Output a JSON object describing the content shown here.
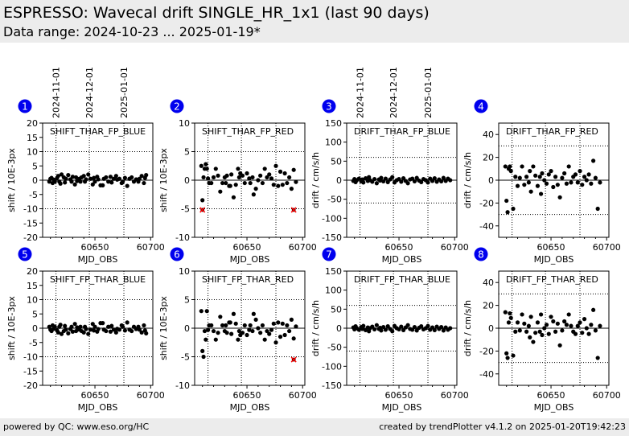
{
  "header": {
    "title": "ESPRESSO: Wavecal drift SINGLE_HR_1x1 (last 90 days)",
    "subtitle": "Data range: 2024-10-23 ... 2025-01-19*"
  },
  "footer": {
    "left": "powered by QC: www.eso.org/HC",
    "right": "created by trendPlotter v4.1.2 on 2025-01-20T19:42:23"
  },
  "colors": {
    "marker": "#000000",
    "badge": "#0000ee",
    "outlier": "#ff0000",
    "background": "#ececec"
  },
  "chart_data": [
    {
      "number": "1",
      "type": "scatter",
      "label": "SHIFT_THAR_FP_BLUE",
      "xlabel": "MJD_OBS",
      "ylabel": "shift / 10E-3px",
      "xlim": [
        60603,
        60702
      ],
      "ylim": [
        -20,
        20
      ],
      "yticks": [
        "20",
        "15",
        "10",
        "5",
        "0",
        "-5",
        "-10",
        "-15",
        "-20"
      ],
      "hlines": [
        10,
        -10
      ],
      "date_labels": [
        "2024-11-01",
        "2024-12-01",
        "2025-01-01"
      ],
      "x": [
        60609,
        60610,
        60611,
        60612,
        60613,
        60614,
        60616,
        60617,
        60618,
        60619,
        60620,
        60622,
        60623,
        60624,
        60626,
        60628,
        60629,
        60630,
        60632,
        60633,
        60634,
        60636,
        60637,
        60638,
        60640,
        60641,
        60642,
        60644,
        60646,
        60648,
        60649,
        60650,
        60652,
        60653,
        60655,
        60657,
        60658,
        60660,
        60662,
        60664,
        60665,
        60667,
        60669,
        60670,
        60672,
        60674,
        60675,
        60677,
        60679,
        60681,
        60683,
        60685,
        60687,
        60689,
        60690,
        60692,
        60694,
        60695,
        60696
      ],
      "y": [
        -0.5,
        0.5,
        0.8,
        -1.0,
        0.2,
        -0.5,
        0.8,
        1.5,
        -0.5,
        -1.2,
        2.0,
        1.0,
        -0.8,
        0.5,
        1.8,
        0.3,
        -0.5,
        1.2,
        -1.5,
        1.0,
        -0.3,
        0.5,
        -0.5,
        1.0,
        1.5,
        -0.5,
        0.3,
        2.0,
        0.5,
        -1.5,
        0.8,
        -0.5,
        1.2,
        0.3,
        -1.8,
        -1.8,
        0.5,
        1.0,
        -0.5,
        1.2,
        -0.8,
        0.5,
        1.5,
        0.2,
        0.5,
        -1.0,
        -0.5,
        0.8,
        -2.0,
        0.5,
        1.0,
        -0.5,
        0.3,
        -0.5,
        0.5,
        1.5,
        -1.0,
        0.8,
        1.8
      ],
      "outliers_x": [],
      "outliers_y": []
    },
    {
      "number": "2",
      "type": "scatter",
      "label": "SHIFT_THAR_FP_RED",
      "xlabel": "MJD_OBS",
      "ylabel": "shift / 10E-3px",
      "xlim": [
        60603,
        60702
      ],
      "ylim": [
        -10,
        10
      ],
      "yticks": [
        "10",
        "5",
        "0",
        "-5",
        "-10"
      ],
      "hlines": [
        5,
        -5
      ],
      "x": [
        60609,
        60610,
        60611,
        60612,
        60613,
        60614,
        60615,
        60616,
        60618,
        60620,
        60622,
        60624,
        60626,
        60628,
        60630,
        60631,
        60632,
        60634,
        60635,
        60636,
        60638,
        60640,
        60642,
        60643,
        60644,
        60646,
        60648,
        60650,
        60652,
        60653,
        60655,
        60656,
        60658,
        60660,
        60662,
        60664,
        60666,
        60668,
        60670,
        60672,
        60674,
        60676,
        60678,
        60680,
        60682,
        60684,
        60686,
        60688,
        60690,
        60692,
        60694
      ],
      "y": [
        2.5,
        -3.5,
        0.5,
        2.0,
        2.8,
        2.0,
        0.3,
        -0.5,
        -0.5,
        0.5,
        2.0,
        0.8,
        -2.0,
        -0.5,
        0.5,
        -0.5,
        0.8,
        -1.0,
        -1.0,
        1.0,
        -3.0,
        -0.8,
        2.0,
        0.5,
        1.2,
        0.8,
        -0.5,
        1.2,
        0.3,
        -0.5,
        0.5,
        -2.5,
        -1.5,
        0.0,
        0.8,
        -0.5,
        2.0,
        0.5,
        1.0,
        0.3,
        -0.8,
        2.5,
        -1.0,
        1.5,
        -0.8,
        1.2,
        -0.5,
        0.5,
        -1.5,
        1.8,
        -0.3
      ],
      "outliers_x": [
        60610,
        60692
      ],
      "outliers_y": [
        -5.2,
        -5.2
      ]
    },
    {
      "number": "3",
      "type": "scatter",
      "label": "DRIFT_THAR_FP_BLUE",
      "xlabel": "MJD_OBS",
      "ylabel": "drift / cm/s/h",
      "xlim": [
        60603,
        60702
      ],
      "ylim": [
        -150,
        150
      ],
      "yticks": [
        "150",
        "100",
        "50",
        "0",
        "-50",
        "-100",
        "-150"
      ],
      "hlines": [
        60,
        -60
      ],
      "date_labels": [
        "2024-11-01",
        "2024-12-01",
        "2025-01-01"
      ],
      "x": [
        60609,
        60610,
        60611,
        60612,
        60614,
        60616,
        60617,
        60618,
        60620,
        60622,
        60623,
        60624,
        60626,
        60628,
        60630,
        60632,
        60633,
        60634,
        60636,
        60638,
        60640,
        60642,
        60644,
        60646,
        60648,
        60650,
        60652,
        60654,
        60656,
        60658,
        60660,
        60662,
        60664,
        60666,
        60668,
        60670,
        60672,
        60674,
        60676,
        60678,
        60680,
        60682,
        60684,
        60686,
        60688,
        60690,
        60692,
        60694,
        60696
      ],
      "y": [
        -2,
        3,
        -5,
        0,
        4,
        -3,
        2,
        -6,
        5,
        -2,
        8,
        0,
        -4,
        3,
        -8,
        2,
        -1,
        6,
        -3,
        4,
        -5,
        2,
        8,
        -6,
        0,
        3,
        -4,
        5,
        -2,
        -8,
        2,
        4,
        -3,
        6,
        -1,
        -5,
        3,
        0,
        -6,
        4,
        -2,
        5,
        -4,
        2,
        -3,
        6,
        -2,
        4,
        0
      ],
      "outliers_x": [],
      "outliers_y": []
    },
    {
      "number": "4",
      "type": "scatter",
      "label": "DRIFT_THAR_FP_RED",
      "xlabel": "MJD_OBS",
      "ylabel": "drift / cm/s/h",
      "xlim": [
        60603,
        60702
      ],
      "ylim": [
        -50,
        50
      ],
      "yticks": [
        "40",
        "20",
        "0",
        "-20",
        "-40"
      ],
      "hlines": [
        30,
        -30
      ],
      "x": [
        60609,
        60610,
        60611,
        60612,
        60613,
        60614,
        60616,
        60618,
        60620,
        60622,
        60624,
        60626,
        60628,
        60630,
        60631,
        60632,
        60634,
        60636,
        60638,
        60640,
        60641,
        60642,
        60644,
        60646,
        60648,
        60650,
        60652,
        60654,
        60656,
        60658,
        60660,
        60662,
        60664,
        60666,
        60668,
        60670,
        60672,
        60674,
        60676,
        60678,
        60680,
        60682,
        60684,
        60686,
        60688,
        60690,
        60692,
        60694
      ],
      "y": [
        12,
        -18,
        -28,
        10,
        12,
        8,
        -25,
        3,
        -5,
        2,
        12,
        -4,
        3,
        -2,
        8,
        -10,
        12,
        4,
        -5,
        3,
        -12,
        6,
        0,
        -3,
        5,
        8,
        -6,
        3,
        -4,
        -15,
        2,
        6,
        -3,
        12,
        -2,
        3,
        5,
        -2,
        8,
        -4,
        3,
        0,
        5,
        -3,
        17,
        2,
        -25,
        -2
      ],
      "outliers_x": [],
      "outliers_y": []
    },
    {
      "number": "5",
      "type": "scatter",
      "label": "SHIFT_FP_THAR_BLUE",
      "xlabel": "MJD_OBS",
      "ylabel": "shift / 10E-3px",
      "xlim": [
        60603,
        60702
      ],
      "ylim": [
        -20,
        20
      ],
      "yticks": [
        "20",
        "15",
        "10",
        "5",
        "0",
        "-5",
        "-10",
        "-15",
        "-20"
      ],
      "hlines": [
        10,
        -10
      ],
      "x": [
        60609,
        60610,
        60611,
        60612,
        60613,
        60614,
        60616,
        60617,
        60618,
        60619,
        60620,
        60622,
        60623,
        60624,
        60626,
        60628,
        60629,
        60630,
        60632,
        60633,
        60634,
        60636,
        60637,
        60638,
        60640,
        60641,
        60642,
        60644,
        60646,
        60648,
        60649,
        60650,
        60652,
        60653,
        60655,
        60657,
        60658,
        60660,
        60662,
        60664,
        60665,
        60667,
        60669,
        60670,
        60672,
        60674,
        60675,
        60677,
        60679,
        60681,
        60683,
        60685,
        60687,
        60689,
        60690,
        60692,
        60694,
        60695,
        60696
      ],
      "y": [
        0.5,
        -0.5,
        -1.0,
        1.0,
        -0.2,
        0.5,
        -0.8,
        -1.5,
        0.5,
        1.2,
        -2.0,
        -1.0,
        0.8,
        -0.5,
        -1.8,
        -0.3,
        0.5,
        -1.2,
        1.5,
        -1.0,
        0.3,
        -0.5,
        0.5,
        -1.0,
        -1.5,
        0.5,
        -0.3,
        -2.0,
        -0.5,
        1.5,
        -0.8,
        0.5,
        -1.2,
        -0.3,
        1.8,
        1.8,
        -0.5,
        -1.0,
        0.5,
        -1.2,
        0.8,
        -0.5,
        -1.5,
        -0.2,
        -0.5,
        1.0,
        0.5,
        -0.8,
        2.0,
        -0.5,
        -1.0,
        0.5,
        -0.3,
        0.5,
        -0.5,
        -1.5,
        1.0,
        -0.8,
        -1.8
      ],
      "outliers_x": [],
      "outliers_y": []
    },
    {
      "number": "6",
      "type": "scatter",
      "label": "SHIFT_FP_THAR_RED",
      "xlabel": "MJD_OBS",
      "ylabel": "shift / 10E-3px",
      "xlim": [
        60603,
        60702
      ],
      "ylim": [
        -10,
        10
      ],
      "yticks": [
        "10",
        "5",
        "0",
        "-5",
        "-10"
      ],
      "hlines": [
        5,
        -5
      ],
      "x": [
        60609,
        60610,
        60611,
        60612,
        60613,
        60614,
        60615,
        60616,
        60618,
        60620,
        60622,
        60624,
        60626,
        60628,
        60630,
        60631,
        60632,
        60634,
        60635,
        60636,
        60638,
        60640,
        60642,
        60643,
        60644,
        60646,
        60648,
        60650,
        60652,
        60653,
        60655,
        60656,
        60658,
        60660,
        60662,
        60664,
        60666,
        60668,
        60670,
        60672,
        60674,
        60676,
        60678,
        60680,
        60682,
        60684,
        60686,
        60688,
        60690,
        60692,
        60694
      ],
      "y": [
        3.0,
        -4.0,
        -5.0,
        -0.5,
        -2.0,
        3.0,
        -0.3,
        0.5,
        0.5,
        -0.5,
        -2.0,
        -0.8,
        2.0,
        0.5,
        -0.5,
        0.5,
        -0.8,
        1.0,
        1.0,
        -1.0,
        2.5,
        0.8,
        -2.0,
        -0.5,
        -1.2,
        -0.8,
        0.5,
        -1.2,
        -0.3,
        0.5,
        -0.5,
        2.5,
        1.5,
        0.0,
        -0.8,
        0.5,
        -2.0,
        -0.5,
        -1.0,
        -0.3,
        0.8,
        -2.5,
        1.0,
        -1.5,
        0.8,
        -1.2,
        0.5,
        -0.5,
        1.5,
        -1.8,
        0.3
      ],
      "outliers_x": [
        60692
      ],
      "outliers_y": [
        -5.5
      ]
    },
    {
      "number": "7",
      "type": "scatter",
      "label": "DRIFT_FP_THAR_BLUE",
      "xlabel": "MJD_OBS",
      "ylabel": "drift / cm/s/h",
      "xlim": [
        60603,
        60702
      ],
      "ylim": [
        -150,
        150
      ],
      "yticks": [
        "150",
        "100",
        "50",
        "0",
        "-50",
        "-100",
        "-150"
      ],
      "hlines": [
        60,
        -60
      ],
      "x": [
        60609,
        60610,
        60611,
        60612,
        60614,
        60616,
        60617,
        60618,
        60620,
        60622,
        60623,
        60624,
        60626,
        60628,
        60630,
        60632,
        60633,
        60634,
        60636,
        60638,
        60640,
        60642,
        60644,
        60646,
        60648,
        60650,
        60652,
        60654,
        60656,
        60658,
        60660,
        60662,
        60664,
        60666,
        60668,
        60670,
        60672,
        60674,
        60676,
        60678,
        60680,
        60682,
        60684,
        60686,
        60688,
        60690,
        60692,
        60694,
        60696
      ],
      "y": [
        2,
        -3,
        5,
        0,
        -4,
        3,
        -2,
        6,
        -5,
        2,
        -8,
        0,
        4,
        -3,
        8,
        -2,
        1,
        -6,
        3,
        -4,
        5,
        -2,
        -8,
        6,
        0,
        -3,
        4,
        -5,
        2,
        8,
        -2,
        -4,
        3,
        -6,
        1,
        5,
        -3,
        0,
        6,
        -4,
        2,
        -5,
        4,
        -2,
        3,
        -6,
        2,
        -4,
        0
      ],
      "outliers_x": [],
      "outliers_y": []
    },
    {
      "number": "8",
      "type": "scatter",
      "label": "DRIFT_FP_THAR_RED",
      "xlabel": "MJD_OBS",
      "ylabel": "drift / cm/s/h",
      "xlim": [
        60603,
        60702
      ],
      "ylim": [
        -50,
        50
      ],
      "yticks": [
        "40",
        "20",
        "0",
        "-20",
        "-40"
      ],
      "hlines": [
        30,
        -30
      ],
      "x": [
        60609,
        60610,
        60611,
        60612,
        60613,
        60614,
        60616,
        60618,
        60620,
        60622,
        60624,
        60626,
        60628,
        60630,
        60631,
        60632,
        60634,
        60636,
        60638,
        60640,
        60641,
        60642,
        60644,
        60646,
        60648,
        60650,
        60652,
        60654,
        60656,
        60658,
        60660,
        60662,
        60664,
        60666,
        60668,
        60670,
        60672,
        60674,
        60676,
        60678,
        60680,
        60682,
        60684,
        60686,
        60688,
        60690,
        60692,
        60694
      ],
      "y": [
        14,
        -22,
        -26,
        5,
        13,
        9,
        -24,
        -3,
        5,
        -2,
        12,
        4,
        -3,
        2,
        -8,
        10,
        -12,
        -4,
        5,
        -3,
        12,
        -6,
        0,
        3,
        -5,
        10,
        6,
        -3,
        4,
        -15,
        -2,
        6,
        3,
        12,
        2,
        -3,
        -5,
        2,
        5,
        -4,
        8,
        0,
        -5,
        3,
        16,
        -2,
        -26,
        2
      ],
      "outliers_x": [],
      "outliers_y": []
    }
  ]
}
